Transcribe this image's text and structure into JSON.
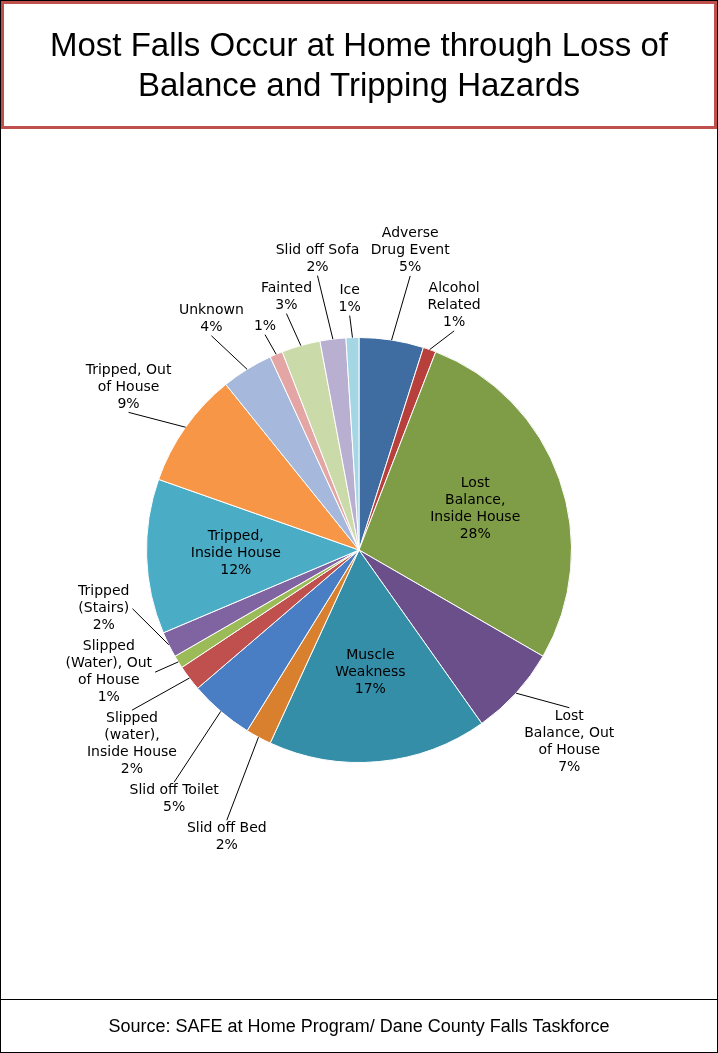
{
  "chart_data": {
    "type": "pie",
    "title": "Most Falls Occur at Home through Loss of Balance and Tripping Hazards",
    "categories": [
      "Adverse Drug Event",
      "Alcohol Related",
      "Lost Balance, Inside House",
      "Lost Balance, Out of House",
      "Muscle Weakness",
      "Slid off Bed",
      "Slid off Toilet",
      "Slipped (water), Inside House",
      "Slipped (Water), Out of House",
      "Tripped (Stairs)",
      "Tripped, Inside House",
      "Tripped, Out of House",
      "Unknown",
      null,
      "Fainted",
      "Slid off Sofa",
      "Ice"
    ],
    "values": [
      5,
      1,
      28,
      7,
      17,
      2,
      5,
      2,
      1,
      2,
      12,
      9,
      4,
      1,
      3,
      2,
      1
    ],
    "value_labels": [
      "5%",
      "1%",
      "28%",
      "7%",
      "17%",
      "2%",
      "5%",
      "2%",
      "1%",
      "2%",
      "12%",
      "9%",
      "4%",
      "1%",
      "3%",
      "2%",
      "1%"
    ],
    "colors": [
      "#3f6ca1",
      "#b8403c",
      "#7f9c47",
      "#6a4f8a",
      "#358ea8",
      "#d9802f",
      "#4a7ec4",
      "#c0504d",
      "#9bbb59",
      "#8064a2",
      "#4bacc6",
      "#f79646",
      "#a6b9dc",
      "#e3a6a5",
      "#cadaa9",
      "#b9afd1",
      "#a5d6e4"
    ],
    "annotations": [
      "Source: SAFE at Home Program/ Dane County Falls Taskforce"
    ]
  }
}
